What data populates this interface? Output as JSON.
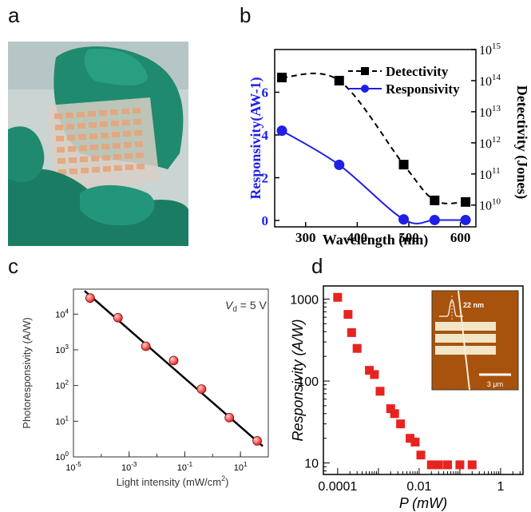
{
  "panels": {
    "a": "a",
    "b": "b",
    "c": "c",
    "d": "d"
  },
  "chart_data": [
    {
      "panel": "b",
      "type": "line",
      "xlabel": "Wavelength (nm)",
      "ylabel_left": "Responsivity(AW-1)",
      "ylabel_right": "Detectivity (Jones)",
      "xlim": [
        240,
        630
      ],
      "xticks": [
        "300",
        "400",
        "500",
        "600"
      ],
      "ylim_left": [
        -0.3,
        8.0
      ],
      "yticks_left": [
        "0",
        "2",
        "4",
        "6"
      ],
      "ylim_right_log": [
        9.3,
        15.0
      ],
      "yticks_right": [
        {
          "base": "10",
          "exp": "10"
        },
        {
          "base": "10",
          "exp": "11"
        },
        {
          "base": "10",
          "exp": "12"
        },
        {
          "base": "10",
          "exp": "13"
        },
        {
          "base": "10",
          "exp": "14"
        },
        {
          "base": "10",
          "exp": "15"
        }
      ],
      "legend_position": "top-right",
      "series": [
        {
          "name": "Detectivity",
          "axis": "right",
          "color": "#000000",
          "x": [
            254,
            365,
            490,
            550,
            610
          ],
          "y_log10": [
            14.1,
            14.0,
            11.3,
            10.15,
            10.1
          ]
        },
        {
          "name": "Responsivity",
          "axis": "left",
          "color": "#1f1fe6",
          "x": [
            254,
            365,
            490,
            550,
            610
          ],
          "y": [
            4.2,
            2.6,
            0.05,
            0.02,
            0.02
          ]
        }
      ]
    },
    {
      "panel": "c",
      "type": "scatter",
      "xlabel": "Light intensity (mW/cm",
      "xlabel_sup": "2",
      "xlabel_end": ")",
      "ylabel": "Photoresponsivity (A/W)",
      "scale": "log-log",
      "xlim_log": [
        -5,
        2
      ],
      "ylim_log": [
        0,
        4.7
      ],
      "xticks": [
        {
          "base": "10",
          "exp": "-5"
        },
        {
          "base": "10",
          "exp": "-3"
        },
        {
          "base": "10",
          "exp": "-1"
        },
        {
          "base": "10",
          "exp": "1"
        }
      ],
      "yticks": [
        {
          "base": "10",
          "exp": "0"
        },
        {
          "base": "10",
          "exp": "1"
        },
        {
          "base": "10",
          "exp": "2"
        },
        {
          "base": "10",
          "exp": "3"
        },
        {
          "base": "10",
          "exp": "4"
        }
      ],
      "annotation": {
        "var": "V",
        "sub": "d",
        "rest": " = 5 V"
      },
      "marker_color": "#e8231f",
      "points_log10": {
        "x": [
          -4.4,
          -3.4,
          -2.4,
          -1.4,
          -0.4,
          0.6,
          1.6
        ],
        "y": [
          4.45,
          3.9,
          3.1,
          2.7,
          1.9,
          1.1,
          0.45
        ]
      },
      "fit_log10": {
        "x": [
          -4.6,
          1.8
        ],
        "y": [
          4.65,
          0.3
        ]
      }
    },
    {
      "panel": "d",
      "type": "scatter",
      "xlabel": "P (mW)",
      "ylabel": "Responsivity (A/W)",
      "scale": "log-log",
      "xlim_log": [
        -4.35,
        0.55
      ],
      "ylim_log": [
        0.86,
        3.16
      ],
      "xticks": [
        "0.0001",
        "0.01",
        "1"
      ],
      "yticks": [
        "10",
        "100",
        "1000"
      ],
      "marker_color": "#e8231f",
      "points": {
        "x": [
          0.0001,
          0.00018,
          0.00022,
          0.0003,
          0.0006,
          0.0008,
          0.0011,
          0.002,
          0.0025,
          0.0035,
          0.006,
          0.008,
          0.011,
          0.02,
          0.03,
          0.05,
          0.1,
          0.2
        ],
        "y": [
          1050,
          650,
          390,
          250,
          135,
          120,
          75,
          46,
          40,
          30,
          20,
          18,
          12.5,
          9.5,
          9.5,
          9.5,
          9.5,
          9.5
        ]
      },
      "inset": {
        "scale_label": "22 nm",
        "scalebar_label": "3 μm"
      }
    }
  ]
}
